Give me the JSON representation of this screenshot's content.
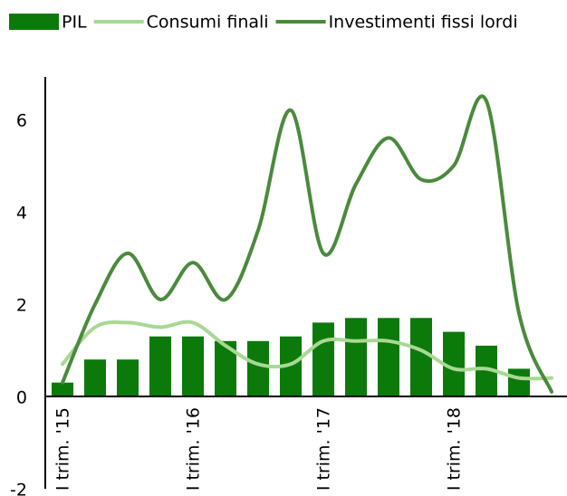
{
  "chart_data": {
    "type": "bar",
    "categories": [
      "I trim. '15",
      null,
      null,
      null,
      "I trim. '16",
      null,
      null,
      null,
      "I trim. '17",
      null,
      null,
      null,
      "I trim. '18",
      null,
      null,
      null
    ],
    "series": [
      {
        "name": "PIL",
        "type": "bar",
        "color": "#0b7a0b",
        "values": [
          0.3,
          0.8,
          0.8,
          1.3,
          1.3,
          1.2,
          1.2,
          1.3,
          1.6,
          1.7,
          1.7,
          1.7,
          1.4,
          1.1,
          0.6,
          null
        ]
      },
      {
        "name": "Consumi finali",
        "type": "line",
        "color": "#a8d894",
        "values": [
          0.7,
          1.5,
          1.6,
          1.5,
          1.6,
          1.1,
          0.7,
          0.7,
          1.2,
          1.2,
          1.2,
          1.0,
          0.6,
          0.6,
          0.4,
          0.4
        ]
      },
      {
        "name": "Investimenti fissi lordi",
        "type": "line",
        "color": "#4a8a3c",
        "values": [
          0.3,
          2.0,
          3.1,
          2.1,
          2.9,
          2.1,
          3.6,
          6.2,
          3.1,
          4.6,
          5.6,
          4.7,
          5.0,
          6.4,
          1.8,
          0.1
        ]
      }
    ],
    "ylim": [
      -2,
      7
    ],
    "yticks": [
      -2,
      0,
      2,
      4,
      6
    ],
    "grid": false,
    "legend": "top"
  }
}
